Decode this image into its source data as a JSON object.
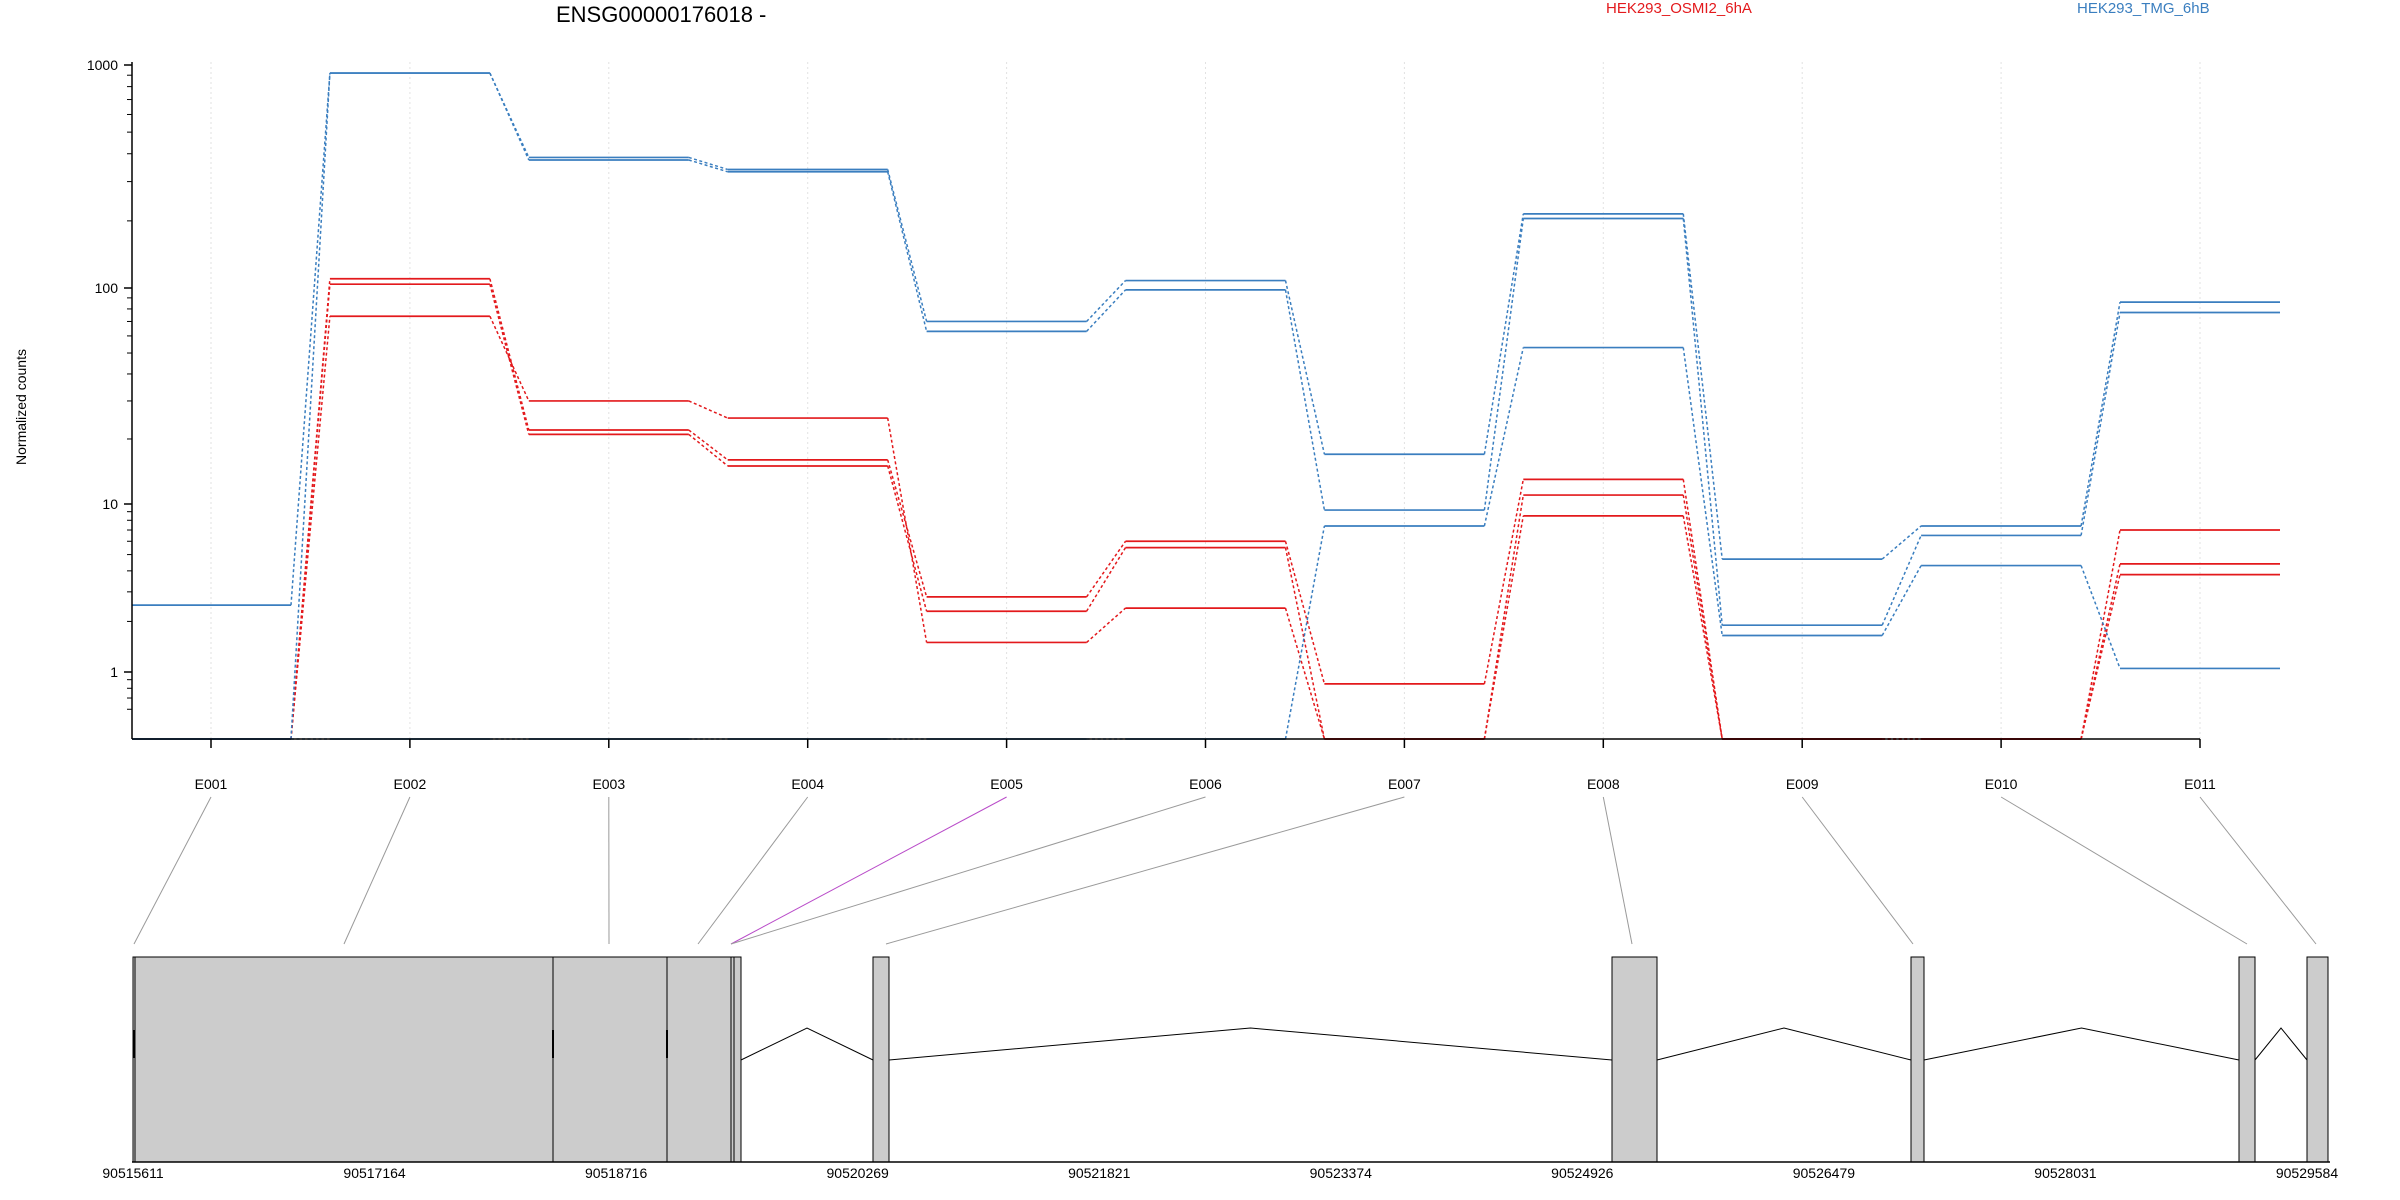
{
  "chart_data": {
    "type": "line",
    "title": "ENSG00000176018 -",
    "ylabel": "Normalized counts",
    "xlabel": "",
    "yscale": "log",
    "grid": "vertical dotted",
    "legend_placement": "top",
    "categories": [
      "E001",
      "E002",
      "E003",
      "E004",
      "E005",
      "E006",
      "E007",
      "E008",
      "E009",
      "E010",
      "E011"
    ],
    "yticks": [
      "1",
      "10",
      "100",
      "1000"
    ],
    "series": [
      {
        "name": "HEK293_OSMI2_6hA",
        "color": "#e3191c",
        "lines": [
          [
            0,
            110,
            22,
            16,
            2.8,
            6,
            0.85,
            13,
            0,
            0,
            7
          ],
          [
            0,
            104,
            21,
            15,
            2.3,
            5.5,
            0,
            11,
            0,
            0,
            3.8
          ],
          [
            0,
            74,
            30,
            25,
            1.5,
            2.4,
            0,
            8.5,
            0,
            0,
            4.4
          ]
        ]
      },
      {
        "name": "HEK293_TMG_6hB",
        "color": "#3a7ebf",
        "lines": [
          [
            2.5,
            920,
            385,
            340,
            70,
            108,
            17,
            215,
            4.7,
            7.4,
            86
          ],
          [
            0,
            920,
            375,
            332,
            63,
            98,
            9.2,
            205,
            1.9,
            6.5,
            77
          ],
          [
            0,
            0,
            0,
            0,
            0,
            0,
            7.4,
            53,
            1.65,
            4.3,
            1.05
          ]
        ]
      }
    ],
    "gene_model": {
      "coordinate_ticks": [
        "90515611",
        "90517164",
        "90518716",
        "90520269",
        "90521821",
        "90523374",
        "90524926",
        "90526479",
        "90528031",
        "90529584"
      ]
    }
  },
  "legend": [
    {
      "label": "HEK293_OSMI2_6hA",
      "color": "#e3191c"
    },
    {
      "label": "HEK293_TMG_6hB",
      "color": "#3a7ebf"
    }
  ]
}
